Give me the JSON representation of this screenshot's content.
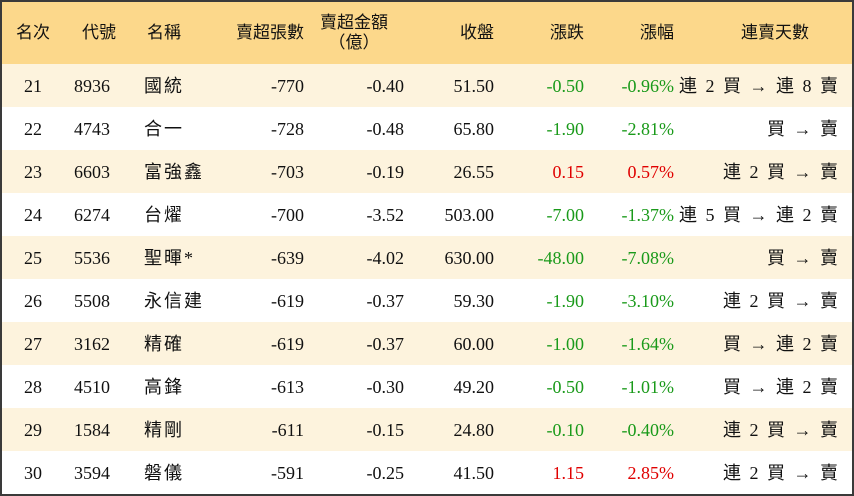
{
  "table": {
    "header": [
      "名次",
      "代號",
      "名稱",
      "賣超張數",
      "賣超金額\n（億）",
      "收盤",
      "漲跌",
      "漲幅",
      "連賣天數"
    ],
    "rows": [
      [
        "21",
        "8936",
        "國統",
        "-770",
        "-0.40",
        "51.50",
        "-0.50",
        "-0.96%",
        "連 2 買 → 連 8 賣"
      ],
      [
        "22",
        "4743",
        "合一",
        "-728",
        "-0.48",
        "65.80",
        "-1.90",
        "-2.81%",
        "買 → 賣"
      ],
      [
        "23",
        "6603",
        "富強鑫",
        "-703",
        "-0.19",
        "26.55",
        "0.15",
        "0.57%",
        "連 2 買 → 賣"
      ],
      [
        "24",
        "6274",
        "台燿",
        "-700",
        "-3.52",
        "503.00",
        "-7.00",
        "-1.37%",
        "連 5 買 → 連 2 賣"
      ],
      [
        "25",
        "5536",
        "聖暉*",
        "-639",
        "-4.02",
        "630.00",
        "-48.00",
        "-7.08%",
        "買 → 賣"
      ],
      [
        "26",
        "5508",
        "永信建",
        "-619",
        "-0.37",
        "59.30",
        "-1.90",
        "-3.10%",
        "連 2 買 → 賣"
      ],
      [
        "27",
        "3162",
        "精確",
        "-619",
        "-0.37",
        "60.00",
        "-1.00",
        "-1.64%",
        "買 → 連 2 賣"
      ],
      [
        "28",
        "4510",
        "高鋒",
        "-613",
        "-0.30",
        "49.20",
        "-0.50",
        "-1.01%",
        "買 → 連 2 賣"
      ],
      [
        "29",
        "1584",
        "精剛",
        "-611",
        "-0.15",
        "24.80",
        "-0.10",
        "-0.40%",
        "連 2 買 → 賣"
      ],
      [
        "30",
        "3594",
        "磐儀",
        "-591",
        "-0.25",
        "41.50",
        "1.15",
        "2.85%",
        "連 2 買 → 賣"
      ]
    ]
  }
}
